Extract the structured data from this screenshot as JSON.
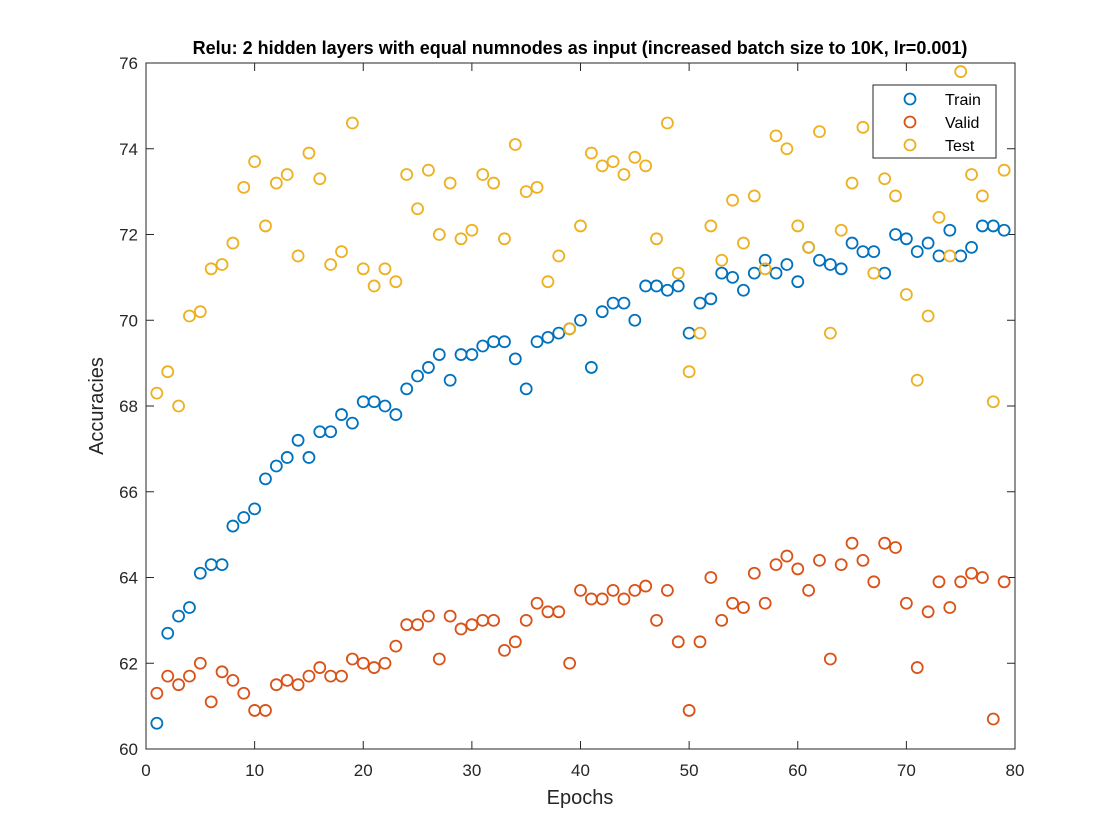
{
  "chart_data": {
    "type": "scatter",
    "title": "Relu: 2 hidden layers with equal numnodes as input (increased batch size to 10K, lr=0.001)",
    "xlabel": "Epochs",
    "ylabel": "Accuracies",
    "xlim": [
      0,
      80
    ],
    "ylim": [
      60,
      76
    ],
    "xticks": [
      0,
      10,
      20,
      30,
      40,
      50,
      60,
      70,
      80
    ],
    "yticks": [
      60,
      62,
      64,
      66,
      68,
      70,
      72,
      74,
      76
    ],
    "grid": false,
    "legend_position": "top-right",
    "x": [
      1,
      2,
      3,
      4,
      5,
      6,
      7,
      8,
      9,
      10,
      11,
      12,
      13,
      14,
      15,
      16,
      17,
      18,
      19,
      20,
      21,
      22,
      23,
      24,
      25,
      26,
      27,
      28,
      29,
      30,
      31,
      32,
      33,
      34,
      35,
      36,
      37,
      38,
      39,
      40,
      41,
      42,
      43,
      44,
      45,
      46,
      47,
      48,
      49,
      50,
      51,
      52,
      53,
      54,
      55,
      56,
      57,
      58,
      59,
      60,
      61,
      62,
      63,
      64,
      65,
      66,
      67,
      68,
      69,
      70,
      71,
      72,
      73,
      74,
      75,
      76,
      77,
      78,
      79
    ],
    "series": [
      {
        "name": "Train",
        "color": "#0072BD",
        "values": [
          60.6,
          62.7,
          63.1,
          63.3,
          64.1,
          64.3,
          64.3,
          65.2,
          65.4,
          65.6,
          66.3,
          66.6,
          66.8,
          67.2,
          66.8,
          67.4,
          67.4,
          67.8,
          67.6,
          68.1,
          68.1,
          68.0,
          67.8,
          68.4,
          68.7,
          68.9,
          69.2,
          68.6,
          69.2,
          69.2,
          69.4,
          69.5,
          69.5,
          69.1,
          68.4,
          69.5,
          69.6,
          69.7,
          69.8,
          70.0,
          68.9,
          70.2,
          70.4,
          70.4,
          70.0,
          70.8,
          70.8,
          70.7,
          70.8,
          69.7,
          70.4,
          70.5,
          71.1,
          71.0,
          70.7,
          71.1,
          71.4,
          71.1,
          71.3,
          70.9,
          71.7,
          71.4,
          71.3,
          71.2,
          71.8,
          71.6,
          71.6,
          71.1,
          72.0,
          71.9,
          71.6,
          71.8,
          71.5,
          72.1,
          71.5,
          71.7,
          72.2,
          72.2,
          72.1
        ]
      },
      {
        "name": "Valid",
        "color": "#D95319",
        "values": [
          61.3,
          61.7,
          61.5,
          61.7,
          62.0,
          61.1,
          61.8,
          61.6,
          61.3,
          60.9,
          60.9,
          61.5,
          61.6,
          61.5,
          61.7,
          61.9,
          61.7,
          61.7,
          62.1,
          62.0,
          61.9,
          62.0,
          62.4,
          62.9,
          62.9,
          63.1,
          62.1,
          63.1,
          62.8,
          62.9,
          63.0,
          63.0,
          62.3,
          62.5,
          63.0,
          63.4,
          63.2,
          63.2,
          62.0,
          63.7,
          63.5,
          63.5,
          63.7,
          63.5,
          63.7,
          63.8,
          63.0,
          63.7,
          62.5,
          60.9,
          62.5,
          64.0,
          63.0,
          63.4,
          63.3,
          64.1,
          63.4,
          64.3,
          64.5,
          64.2,
          63.7,
          64.4,
          62.1,
          64.3,
          64.8,
          64.4,
          63.9,
          64.8,
          64.7,
          63.4,
          61.9,
          63.2,
          63.9,
          63.3,
          63.9,
          64.1,
          64.0,
          60.7,
          63.9
        ]
      },
      {
        "name": "Test",
        "color": "#EDB120",
        "values": [
          68.3,
          68.8,
          68.0,
          70.1,
          70.2,
          71.2,
          71.3,
          71.8,
          73.1,
          73.7,
          72.2,
          73.2,
          73.4,
          71.5,
          73.9,
          73.3,
          71.3,
          71.6,
          74.6,
          71.2,
          70.8,
          71.2,
          70.9,
          73.4,
          72.6,
          73.5,
          72.0,
          73.2,
          71.9,
          72.1,
          73.4,
          73.2,
          71.9,
          74.1,
          73.0,
          73.1,
          70.9,
          71.5,
          69.8,
          72.2,
          73.9,
          73.6,
          73.7,
          73.4,
          73.8,
          73.6,
          71.9,
          74.6,
          71.1,
          68.8,
          69.7,
          72.2,
          71.4,
          72.8,
          71.8,
          72.9,
          71.2,
          74.3,
          74.0,
          72.2,
          71.7,
          74.4,
          69.7,
          72.1,
          73.2,
          74.5,
          71.1,
          73.3,
          72.9,
          70.6,
          68.6,
          70.1,
          72.4,
          71.5,
          75.8,
          73.4,
          72.9,
          68.1,
          73.5
        ]
      }
    ]
  }
}
